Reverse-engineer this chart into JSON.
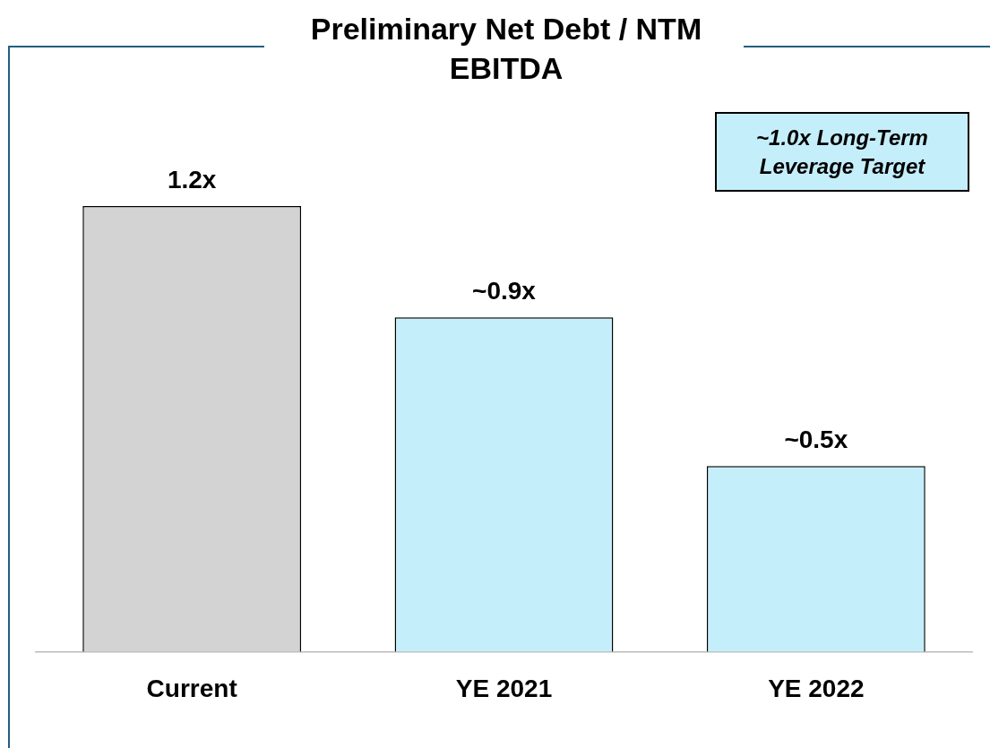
{
  "chart_data": {
    "type": "bar",
    "title": "Preliminary Net Debt / NTM EBITDA",
    "categories": [
      "Current",
      "YE 2021",
      "YE 2022"
    ],
    "values": [
      1.2,
      0.9,
      0.5
    ],
    "colors": [
      "#d3d3d3",
      "#c5eefb",
      "#c5eefb"
    ],
    "value_labels": [
      "1.2x",
      "~0.9x",
      "~0.5x"
    ],
    "annotations": [
      "~1.0x Long-Term Leverage Target"
    ]
  }
}
